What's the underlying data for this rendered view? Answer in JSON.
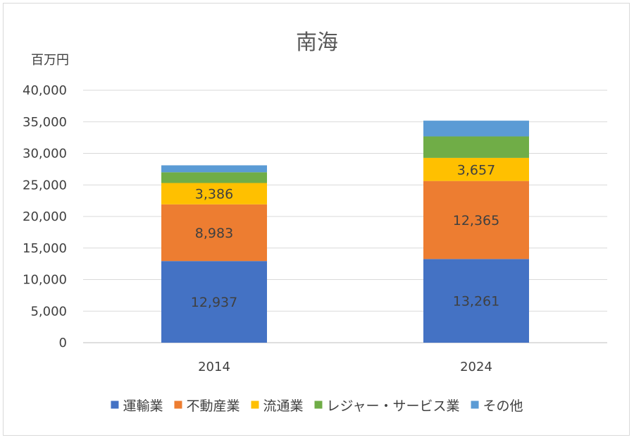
{
  "chart_data": {
    "type": "bar",
    "stacked": true,
    "title": "南海",
    "ylabel": "百万円",
    "xlabel": "",
    "ylim": [
      0,
      40000
    ],
    "ytick_step": 5000,
    "ytick_labels": [
      "0",
      "5,000",
      "10,000",
      "15,000",
      "20,000",
      "25,000",
      "30,000",
      "35,000",
      "40,000"
    ],
    "categories": [
      "2014",
      "2024"
    ],
    "grid": true,
    "legend_position": "bottom",
    "series": [
      {
        "name": "運輸業",
        "color": "#4472c4",
        "values": [
          12937,
          13261
        ],
        "labels": [
          "12,937",
          "13,261"
        ]
      },
      {
        "name": "不動産業",
        "color": "#ed7d31",
        "values": [
          8983,
          12365
        ],
        "labels": [
          "8,983",
          "12,365"
        ]
      },
      {
        "name": "流通業",
        "color": "#ffc000",
        "values": [
          3386,
          3657
        ],
        "labels": [
          "3,386",
          "3,657"
        ]
      },
      {
        "name": "レジャー・サービス業",
        "color": "#70ad47",
        "values": [
          1700,
          3400
        ],
        "labels": []
      },
      {
        "name": "その他",
        "color": "#5b9bd5",
        "values": [
          1100,
          2500
        ],
        "labels": []
      }
    ]
  }
}
